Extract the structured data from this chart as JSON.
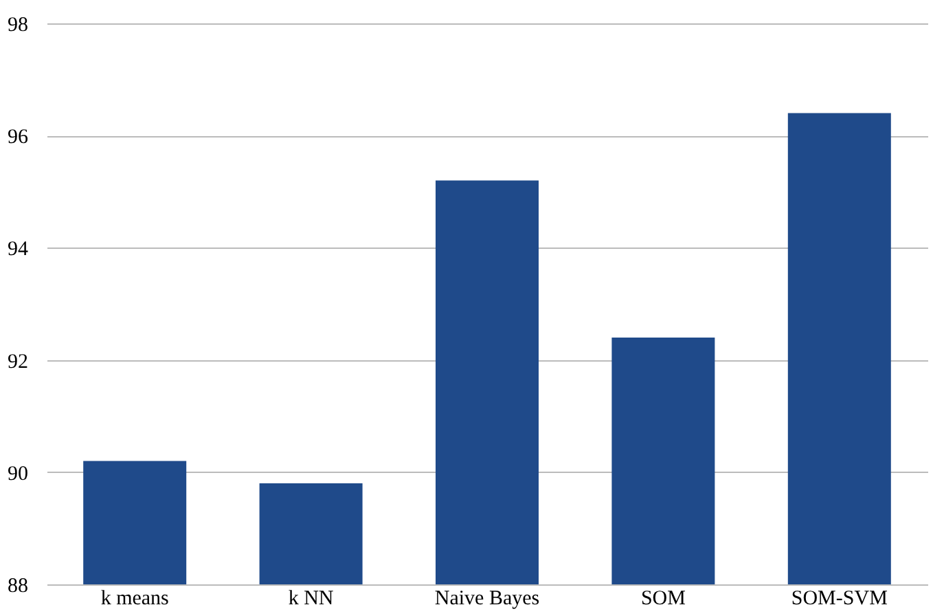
{
  "chart_data": {
    "type": "bar",
    "categories": [
      "k means",
      "k NN",
      "Naive Bayes",
      "SOM",
      "SOM-SVM"
    ],
    "values": [
      90.2,
      89.8,
      95.2,
      92.4,
      96.4
    ],
    "color": "#1f4a8a",
    "ylim": [
      88,
      98
    ],
    "yticks": [
      88,
      90,
      92,
      94,
      96,
      98
    ],
    "grid": "y"
  }
}
